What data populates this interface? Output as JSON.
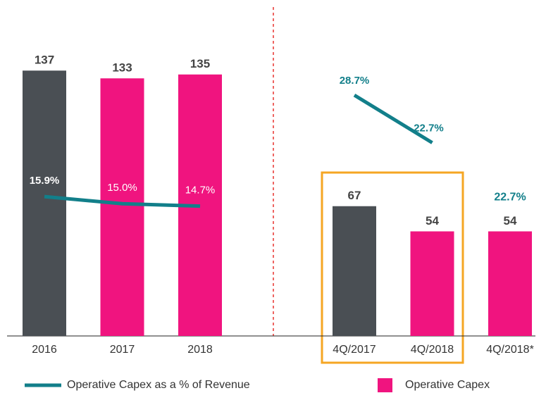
{
  "chart_data": [
    {
      "type": "bar-line",
      "categories": [
        "2016",
        "2017",
        "2018"
      ],
      "series": [
        {
          "name": "Operative Capex",
          "type": "bar",
          "colors": [
            "#4a4f54",
            "#f0147f",
            "#f0147f"
          ],
          "values": [
            137,
            133,
            135
          ]
        },
        {
          "name": "Operative Capex as a % of Revenue",
          "type": "line",
          "color": "#127f8a",
          "values": [
            15.9,
            15.0,
            14.7
          ],
          "value_labels": [
            "15.9%",
            "15.0%",
            "14.7%"
          ]
        }
      ]
    },
    {
      "type": "bar-line",
      "categories": [
        "4Q/2017",
        "4Q/2018",
        "4Q/2018*"
      ],
      "series": [
        {
          "type": "bar",
          "colors": [
            "#4a4f54",
            "#f0147f",
            "#f0147f"
          ],
          "values": [
            67,
            54,
            54
          ]
        },
        {
          "type": "line",
          "color": "#127f8a",
          "values": [
            28.7,
            22.7,
            null
          ],
          "value_labels": [
            "28.7%",
            "22.7%",
            null
          ]
        }
      ],
      "annotations": [
        "22.7%"
      ]
    }
  ]
}
